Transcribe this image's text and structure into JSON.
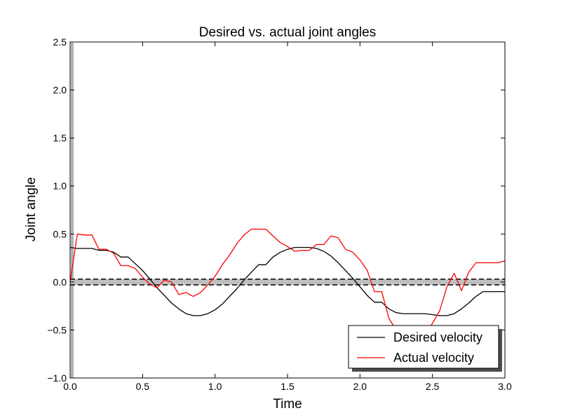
{
  "chart_data": {
    "type": "line",
    "title": "Desired vs. actual joint angles",
    "xlabel": "Time",
    "ylabel": "Joint angle",
    "xlim": [
      0.0,
      3.0
    ],
    "ylim": [
      -1.0,
      2.5
    ],
    "xticks": [
      0.0,
      0.5,
      1.0,
      1.5,
      2.0,
      2.5,
      3.0
    ],
    "xtick_labels": [
      "0.0",
      "0.5",
      "1.0",
      "1.5",
      "2.0",
      "2.5",
      "3.0"
    ],
    "yticks": [
      -1.0,
      -0.5,
      0.0,
      0.5,
      1.0,
      1.5,
      2.0,
      2.5
    ],
    "ytick_labels": [
      "−1.0",
      "−0.5",
      "0.0",
      "0.5",
      "1.0",
      "1.5",
      "2.0",
      "2.5"
    ],
    "grid": false,
    "legend_position": "bottom-right",
    "band": {
      "y_low": -0.03,
      "y_high": 0.03,
      "color": "#bfbfbf",
      "edge_color": "#000000",
      "edge_style": "dashed"
    },
    "series": [
      {
        "name": "Desired velocity",
        "color": "#000000",
        "x": [
          0.0,
          0.05,
          0.1,
          0.15,
          0.2,
          0.25,
          0.3,
          0.35,
          0.4,
          0.45,
          0.5,
          0.55,
          0.6,
          0.65,
          0.7,
          0.75,
          0.8,
          0.85,
          0.9,
          0.95,
          1.0,
          1.05,
          1.1,
          1.15,
          1.2,
          1.25,
          1.3,
          1.35,
          1.4,
          1.45,
          1.5,
          1.55,
          1.6,
          1.65,
          1.7,
          1.75,
          1.8,
          1.85,
          1.9,
          1.95,
          2.0,
          2.05,
          2.1,
          2.15,
          2.2,
          2.25,
          2.3,
          2.35,
          2.4,
          2.45,
          2.5,
          2.55,
          2.6,
          2.65,
          2.7,
          2.75,
          2.8,
          2.85,
          2.9,
          2.95,
          3.0
        ],
        "y": [
          0.36,
          0.35,
          0.35,
          0.35,
          0.33,
          0.33,
          0.31,
          0.26,
          0.26,
          0.19,
          0.12,
          0.03,
          -0.06,
          -0.14,
          -0.22,
          -0.28,
          -0.33,
          -0.35,
          -0.35,
          -0.33,
          -0.29,
          -0.23,
          -0.15,
          -0.07,
          0.02,
          0.1,
          0.18,
          0.18,
          0.26,
          0.31,
          0.34,
          0.36,
          0.36,
          0.36,
          0.35,
          0.32,
          0.27,
          0.2,
          0.12,
          0.04,
          -0.05,
          -0.14,
          -0.21,
          -0.21,
          -0.28,
          -0.32,
          -0.33,
          -0.33,
          -0.33,
          -0.33,
          -0.34,
          -0.35,
          -0.35,
          -0.33,
          -0.28,
          -0.22,
          -0.15,
          -0.1,
          -0.1,
          -0.1,
          -0.1
        ]
      },
      {
        "name": "Actual velocity",
        "color": "#ff0000",
        "x": [
          0.0,
          0.05,
          0.1,
          0.15,
          0.2,
          0.25,
          0.3,
          0.35,
          0.4,
          0.45,
          0.5,
          0.55,
          0.6,
          0.65,
          0.7,
          0.75,
          0.8,
          0.85,
          0.9,
          0.95,
          1.0,
          1.05,
          1.1,
          1.15,
          1.2,
          1.25,
          1.3,
          1.35,
          1.4,
          1.45,
          1.5,
          1.55,
          1.6,
          1.65,
          1.7,
          1.75,
          1.8,
          1.85,
          1.9,
          1.95,
          2.0,
          2.05,
          2.1,
          2.15,
          2.2,
          2.25,
          2.3,
          2.35,
          2.4,
          2.45,
          2.5,
          2.55,
          2.6,
          2.65,
          2.7,
          2.75,
          2.8,
          2.85,
          2.9,
          2.95,
          3.0
        ],
        "y": [
          0.0,
          0.5,
          0.49,
          0.49,
          0.34,
          0.34,
          0.3,
          0.17,
          0.17,
          0.14,
          0.05,
          -0.02,
          -0.06,
          0.02,
          0.0,
          -0.13,
          -0.11,
          -0.15,
          -0.11,
          -0.03,
          0.06,
          0.18,
          0.28,
          0.4,
          0.49,
          0.55,
          0.55,
          0.55,
          0.48,
          0.41,
          0.37,
          0.32,
          0.33,
          0.33,
          0.39,
          0.39,
          0.48,
          0.46,
          0.34,
          0.31,
          0.23,
          0.12,
          -0.1,
          -0.1,
          -0.38,
          -0.5,
          -0.58,
          -0.62,
          -0.6,
          -0.55,
          -0.43,
          -0.3,
          -0.05,
          0.09,
          -0.09,
          0.1,
          0.2,
          0.2,
          0.2,
          0.2,
          0.22
        ]
      }
    ]
  }
}
